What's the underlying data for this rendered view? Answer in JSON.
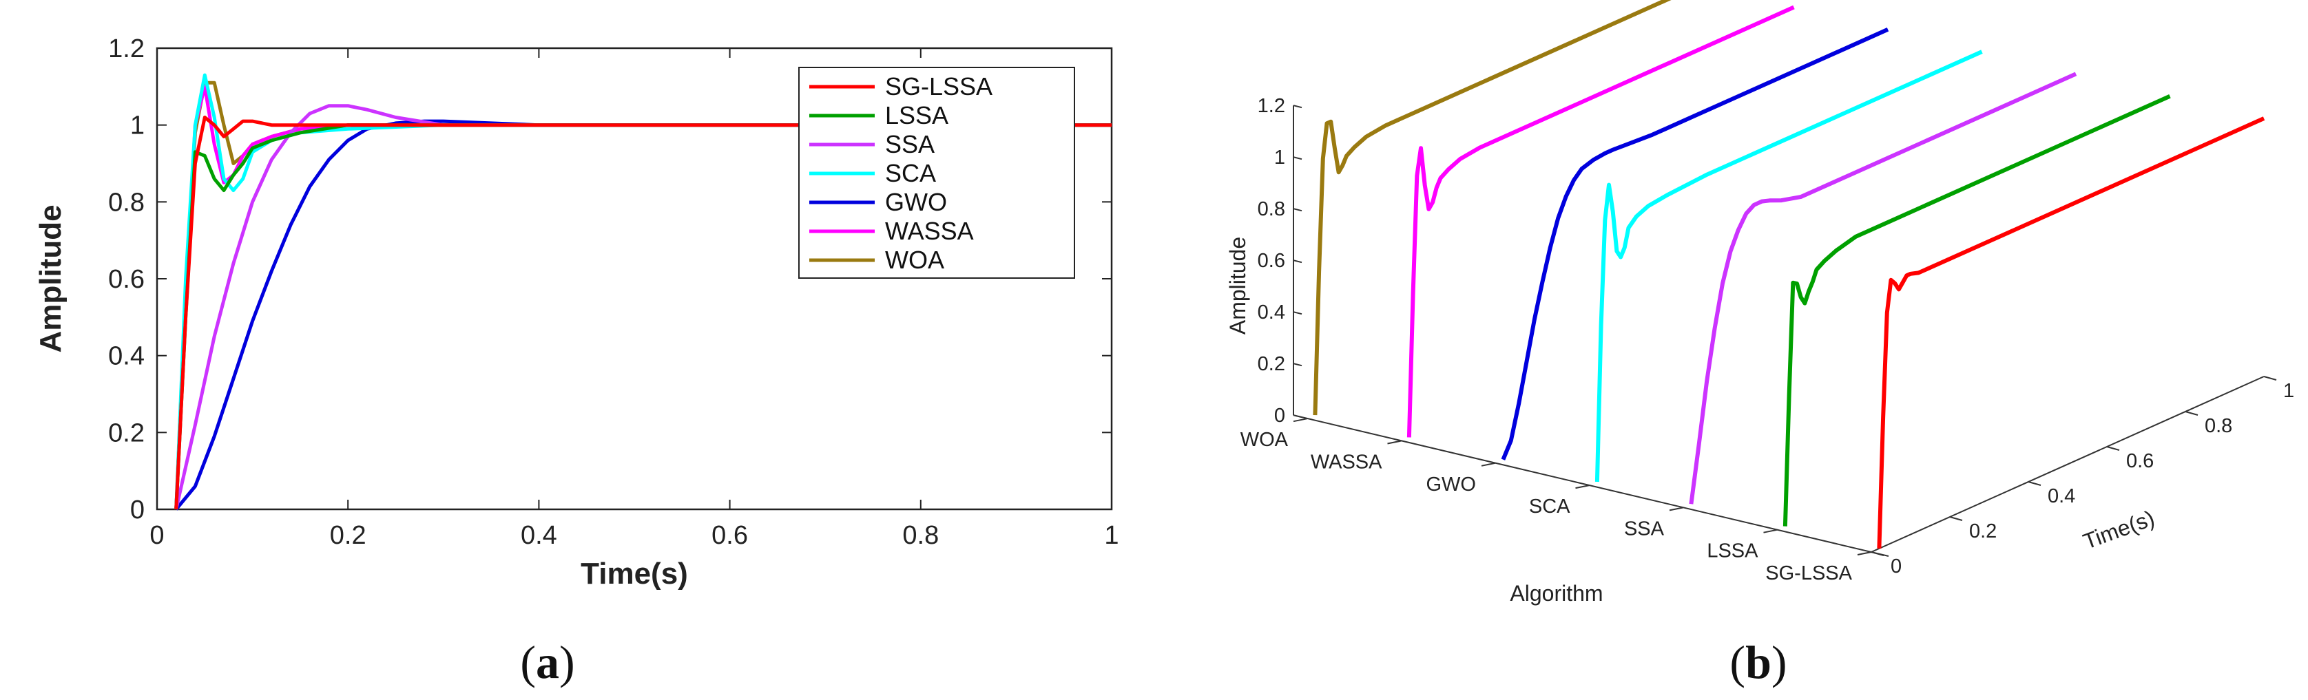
{
  "chart_data": [
    {
      "type": "line",
      "panel": "a",
      "xlabel": "Time(s)",
      "ylabel": "Amplitude",
      "xlim": [
        0,
        1
      ],
      "ylim": [
        0,
        1.2
      ],
      "xticks": [
        "0",
        "0.2",
        "0.4",
        "0.6",
        "0.8",
        "1"
      ],
      "yticks": [
        "0",
        "0.2",
        "0.4",
        "0.6",
        "0.8",
        "1",
        "1.2"
      ],
      "legend_position": "top-right",
      "series": [
        {
          "name": "SG-LSSA",
          "color": "#ff0000",
          "x": [
            0.02,
            0.03,
            0.04,
            0.05,
            0.06,
            0.07,
            0.08,
            0.09,
            0.1,
            0.12,
            0.15,
            0.2,
            0.3,
            1.0
          ],
          "y": [
            0,
            0.5,
            0.9,
            1.02,
            1.0,
            0.97,
            0.99,
            1.01,
            1.01,
            1.0,
            1.0,
            1.0,
            1.0,
            1.0
          ]
        },
        {
          "name": "LSSA",
          "color": "#00a000",
          "x": [
            0.02,
            0.03,
            0.04,
            0.05,
            0.06,
            0.07,
            0.08,
            0.09,
            0.1,
            0.12,
            0.15,
            0.2,
            0.3,
            1.0
          ],
          "y": [
            0,
            0.5,
            0.93,
            0.92,
            0.86,
            0.83,
            0.87,
            0.9,
            0.94,
            0.96,
            0.98,
            1.0,
            1.0,
            1.0
          ]
        },
        {
          "name": "SSA",
          "color": "#cc33ff",
          "x": [
            0.02,
            0.04,
            0.06,
            0.08,
            0.1,
            0.12,
            0.14,
            0.16,
            0.18,
            0.2,
            0.22,
            0.25,
            0.3,
            0.35,
            0.4,
            0.5,
            1.0
          ],
          "y": [
            0,
            0.22,
            0.45,
            0.64,
            0.8,
            0.91,
            0.98,
            1.03,
            1.05,
            1.05,
            1.04,
            1.02,
            1.0,
            1.0,
            1.0,
            1.0,
            1.0
          ]
        },
        {
          "name": "SCA",
          "color": "#00ffff",
          "x": [
            0.02,
            0.03,
            0.04,
            0.05,
            0.06,
            0.07,
            0.08,
            0.09,
            0.1,
            0.12,
            0.15,
            0.2,
            0.3,
            1.0
          ],
          "y": [
            0,
            0.6,
            1.0,
            1.13,
            1.02,
            0.86,
            0.83,
            0.86,
            0.93,
            0.96,
            0.98,
            0.99,
            1.0,
            1.0
          ]
        },
        {
          "name": "GWO",
          "color": "#0000dd",
          "x": [
            0.02,
            0.04,
            0.06,
            0.08,
            0.1,
            0.12,
            0.14,
            0.16,
            0.18,
            0.2,
            0.22,
            0.25,
            0.28,
            0.3,
            0.35,
            0.4,
            0.5,
            1.0
          ],
          "y": [
            0,
            0.06,
            0.19,
            0.34,
            0.49,
            0.62,
            0.74,
            0.84,
            0.91,
            0.96,
            0.99,
            1.005,
            1.01,
            1.01,
            1.005,
            1.0,
            1.0,
            1.0
          ]
        },
        {
          "name": "WASSA",
          "color": "#ff00ff",
          "x": [
            0.02,
            0.03,
            0.04,
            0.05,
            0.06,
            0.07,
            0.08,
            0.09,
            0.1,
            0.12,
            0.15,
            0.2,
            0.3,
            1.0
          ],
          "y": [
            0,
            0.55,
            1.0,
            1.1,
            0.95,
            0.85,
            0.87,
            0.92,
            0.95,
            0.97,
            0.99,
            1.0,
            1.0,
            1.0
          ]
        },
        {
          "name": "WOA",
          "color": "#9a7a10",
          "x": [
            0.02,
            0.03,
            0.04,
            0.05,
            0.06,
            0.07,
            0.08,
            0.09,
            0.1,
            0.12,
            0.15,
            0.2,
            0.3,
            1.0
          ],
          "y": [
            0,
            0.55,
            0.98,
            1.11,
            1.11,
            1.0,
            0.9,
            0.92,
            0.95,
            0.97,
            0.99,
            1.0,
            1.0,
            1.0
          ]
        }
      ]
    },
    {
      "type": "line",
      "panel": "b",
      "projection": "3d-waterfall",
      "xlabel": "Algorithm",
      "ylabel": "Time(s)",
      "zlabel": "Amplitude",
      "categories": [
        "WOA",
        "WASSA",
        "GWO",
        "SCA",
        "SSA",
        "LSSA",
        "SG-LSSA"
      ],
      "colors": [
        "#9a7a10",
        "#ff00ff",
        "#0000dd",
        "#00ffff",
        "#cc33ff",
        "#00a000",
        "#ff0000"
      ],
      "time_ticks": [
        "0",
        "0.2",
        "0.4",
        "0.6",
        "0.8",
        "1"
      ],
      "amplitude_ticks": [
        "0",
        "0.2",
        "0.4",
        "0.6",
        "0.8",
        "1",
        "1.2"
      ],
      "time_range": [
        0,
        1
      ],
      "amplitude_range": [
        0,
        1.2
      ]
    }
  ],
  "captions": {
    "a": "a",
    "b": "b"
  }
}
